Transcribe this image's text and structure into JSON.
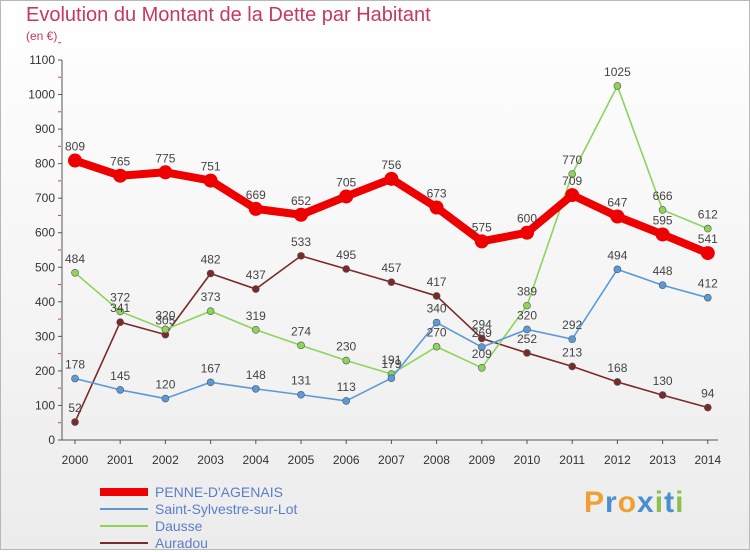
{
  "title": "Evolution du Montant de la Dette par Habitant",
  "unit": "(en €)",
  "brand": {
    "letters": [
      "P",
      "r",
      "o",
      "x",
      "i",
      "t",
      "i"
    ],
    "colors": [
      "#f0a030",
      "#4a90d0",
      "#f0a030",
      "#4a90d0",
      "#8cc04a",
      "#4a90d0",
      "#8cc04a"
    ]
  },
  "chart_data": {
    "type": "line",
    "title": "Evolution du Montant de la Dette par Habitant",
    "ylabel": "(en €)",
    "ylim": [
      0,
      1100
    ],
    "yticks": [
      0,
      100,
      200,
      300,
      400,
      500,
      600,
      700,
      800,
      900,
      1000,
      1100
    ],
    "x": [
      "2000",
      "2001",
      "2002",
      "2003",
      "2004",
      "2005",
      "2006",
      "2007",
      "2008",
      "2009",
      "2010",
      "2011",
      "2012",
      "2013",
      "2014"
    ],
    "grid": false,
    "legend": "bottom",
    "series": [
      {
        "name": "Auradou",
        "color": "#7a2a2a",
        "values": [
          52,
          341,
          305,
          482,
          437,
          533,
          495,
          457,
          417,
          294,
          252,
          213,
          168,
          130,
          94
        ],
        "labels": [
          "52",
          "341",
          "305",
          "482",
          "437",
          "533",
          "495",
          "457",
          "417",
          "294",
          "252",
          "213",
          "168",
          "130",
          "94"
        ]
      },
      {
        "name": "Dausse",
        "color": "#8cd45a",
        "values": [
          484,
          372,
          320,
          373,
          319,
          274,
          230,
          191,
          270,
          209,
          389,
          770,
          1025,
          666,
          612
        ],
        "labels": [
          "484",
          "372",
          "320",
          "373",
          "319",
          "274",
          "230",
          "191",
          "270",
          "209",
          "389",
          "770",
          "1025",
          "666",
          "612"
        ]
      },
      {
        "name": "Saint-Sylvestre-sur-Lot",
        "color": "#5a9ad8",
        "values": [
          178,
          145,
          120,
          167,
          148,
          131,
          113,
          179,
          340,
          269,
          320,
          292,
          494,
          448,
          412
        ],
        "labels": [
          "178",
          "145",
          "120",
          "167",
          "148",
          "131",
          "113",
          "179",
          "340",
          "269",
          "320",
          "292",
          "494",
          "448",
          "412"
        ]
      },
      {
        "name": "PENNE-D'AGENAIS",
        "color": "#ee0000",
        "values": [
          809,
          765,
          775,
          751,
          669,
          652,
          705,
          756,
          673,
          575,
          600,
          709,
          647,
          595,
          541
        ],
        "labels": [
          "809",
          "765",
          "775",
          "751",
          "669",
          "652",
          "705",
          "756",
          "673",
          "575",
          "600",
          "709",
          "647",
          "595",
          "541"
        ]
      }
    ]
  },
  "legend": {
    "items": [
      "PENNE-D'AGENAIS",
      "Saint-Sylvestre-sur-Lot",
      "Dausse",
      "Auradou"
    ]
  }
}
